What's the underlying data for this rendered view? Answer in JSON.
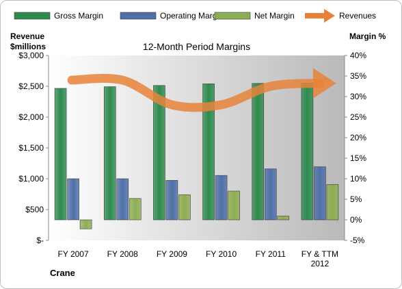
{
  "chart_data": {
    "type": "bar",
    "title": "12-Month Period Margins",
    "company": "Crane",
    "left_axis_title": [
      "Revenue",
      "$millions"
    ],
    "right_axis_title": "Margin %",
    "categories": [
      [
        "FY 2007"
      ],
      [
        "FY 2008"
      ],
      [
        "FY 2009"
      ],
      [
        "FY 2010"
      ],
      [
        "FY 2011"
      ],
      [
        "FY & TTM",
        "2012"
      ]
    ],
    "left_axis": {
      "min": 0,
      "max": 3000,
      "step": 500,
      "tick_labels": [
        "$-",
        "$500",
        "$1,000",
        "$1,500",
        "$2,000",
        "$2,500",
        "$3,000"
      ]
    },
    "right_axis": {
      "min": -5,
      "max": 40,
      "step": 5,
      "tick_labels": [
        "-5%",
        "0%",
        "5%",
        "10%",
        "15%",
        "20%",
        "25%",
        "30%",
        "35%",
        "40%"
      ]
    },
    "legend_position": "top",
    "grid": false,
    "series": [
      {
        "name": "Gross Margin",
        "kind": "bar",
        "axis": "right",
        "color": "#2e8b4e",
        "values": [
          32.0,
          32.4,
          32.7,
          33.1,
          33.2,
          33.3
        ]
      },
      {
        "name": "Operating Margin",
        "kind": "bar",
        "axis": "right",
        "color": "#4f6fa8",
        "values": [
          10.0,
          10.0,
          9.6,
          10.8,
          12.4,
          12.9
        ]
      },
      {
        "name": "Net Margin",
        "kind": "bar",
        "axis": "right",
        "color": "#8cae52",
        "values": [
          -2.2,
          5.2,
          6.1,
          7.0,
          0.9,
          8.6
        ]
      },
      {
        "name": "Revenues",
        "kind": "line",
        "axis": "left",
        "color": "#e8823a",
        "values": [
          2600,
          2600,
          2200,
          2200,
          2500,
          2550
        ]
      }
    ]
  }
}
